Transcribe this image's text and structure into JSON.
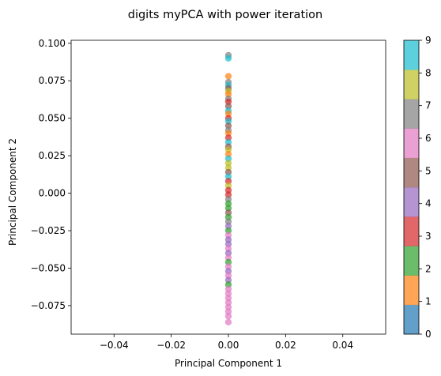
{
  "chart_data": {
    "type": "scatter",
    "title": "digits myPCA with power iteration",
    "xlabel": "Principal Component 1",
    "ylabel": "Principal Component 2",
    "xlim": [
      -0.055,
      0.055
    ],
    "ylim": [
      -0.094,
      0.102
    ],
    "grid": false,
    "x_ticks": [
      -0.04,
      -0.02,
      0.0,
      0.02,
      0.04
    ],
    "x_tick_labels": [
      "−0.04",
      "−0.02",
      "0.00",
      "0.02",
      "0.04"
    ],
    "y_ticks": [
      -0.075,
      -0.05,
      -0.025,
      0.0,
      0.025,
      0.05,
      0.075,
      0.1
    ],
    "y_tick_labels": [
      "−0.075",
      "−0.050",
      "−0.025",
      "0.000",
      "0.025",
      "0.050",
      "0.075",
      "0.100"
    ],
    "colorbar": {
      "min": 0,
      "max": 9,
      "ticks": [
        0,
        1,
        2,
        3,
        4,
        5,
        6,
        7,
        8,
        9
      ],
      "tick_labels": [
        "0",
        "1",
        "2",
        "3",
        "4",
        "5",
        "6",
        "7",
        "8",
        "9"
      ],
      "colors": [
        "#1f77b4",
        "#ff7f0e",
        "#2ca02c",
        "#d62728",
        "#9467bd",
        "#8c564b",
        "#e377c2",
        "#7f7f7f",
        "#bcbd22",
        "#17becf"
      ]
    },
    "points": [
      {
        "x": 0,
        "y": 0.092,
        "c": 7
      },
      {
        "x": 0,
        "y": 0.09,
        "c": 9
      },
      {
        "x": 0,
        "y": 0.078,
        "c": 1
      },
      {
        "x": 0,
        "y": 0.074,
        "c": 7
      },
      {
        "x": 0,
        "y": 0.072,
        "c": 9
      },
      {
        "x": 0,
        "y": 0.07,
        "c": 5
      },
      {
        "x": 0,
        "y": 0.068,
        "c": 8
      },
      {
        "x": 0,
        "y": 0.066,
        "c": 1
      },
      {
        "x": 0,
        "y": 0.063,
        "c": 7
      },
      {
        "x": 0,
        "y": 0.061,
        "c": 3
      },
      {
        "x": 0,
        "y": 0.058,
        "c": 5
      },
      {
        "x": 0,
        "y": 0.055,
        "c": 9
      },
      {
        "x": 0,
        "y": 0.053,
        "c": 1
      },
      {
        "x": 0,
        "y": 0.05,
        "c": 3
      },
      {
        "x": 0,
        "y": 0.048,
        "c": 9
      },
      {
        "x": 0,
        "y": 0.045,
        "c": 5
      },
      {
        "x": 0,
        "y": 0.042,
        "c": 7
      },
      {
        "x": 0,
        "y": 0.04,
        "c": 1
      },
      {
        "x": 0,
        "y": 0.037,
        "c": 3
      },
      {
        "x": 0,
        "y": 0.034,
        "c": 9
      },
      {
        "x": 0,
        "y": 0.031,
        "c": 5
      },
      {
        "x": 0,
        "y": 0.029,
        "c": 8
      },
      {
        "x": 0,
        "y": 0.026,
        "c": 1
      },
      {
        "x": 0,
        "y": 0.023,
        "c": 9
      },
      {
        "x": 0,
        "y": 0.02,
        "c": 8
      },
      {
        "x": 0,
        "y": 0.017,
        "c": 8
      },
      {
        "x": 0,
        "y": 0.014,
        "c": 5
      },
      {
        "x": 0,
        "y": 0.011,
        "c": 9
      },
      {
        "x": 0,
        "y": 0.008,
        "c": 3
      },
      {
        "x": 0,
        "y": 0.005,
        "c": 8
      },
      {
        "x": 0,
        "y": 0.002,
        "c": 3
      },
      {
        "x": 0,
        "y": -0.001,
        "c": 3
      },
      {
        "x": 0,
        "y": -0.004,
        "c": 7
      },
      {
        "x": 0,
        "y": -0.007,
        "c": 2
      },
      {
        "x": 0,
        "y": -0.01,
        "c": 2
      },
      {
        "x": 0,
        "y": -0.013,
        "c": 5
      },
      {
        "x": 0,
        "y": -0.016,
        "c": 2
      },
      {
        "x": 0,
        "y": -0.019,
        "c": 7
      },
      {
        "x": 0,
        "y": -0.022,
        "c": 4
      },
      {
        "x": 0,
        "y": -0.025,
        "c": 2
      },
      {
        "x": 0,
        "y": -0.028,
        "c": 6
      },
      {
        "x": 0,
        "y": -0.031,
        "c": 4
      },
      {
        "x": 0,
        "y": -0.034,
        "c": 4
      },
      {
        "x": 0,
        "y": -0.037,
        "c": 6
      },
      {
        "x": 0,
        "y": -0.04,
        "c": 4
      },
      {
        "x": 0,
        "y": -0.043,
        "c": 6
      },
      {
        "x": 0,
        "y": -0.046,
        "c": 2
      },
      {
        "x": 0,
        "y": -0.049,
        "c": 6
      },
      {
        "x": 0,
        "y": -0.052,
        "c": 4
      },
      {
        "x": 0,
        "y": -0.055,
        "c": 6
      },
      {
        "x": 0,
        "y": -0.058,
        "c": 4
      },
      {
        "x": 0,
        "y": -0.061,
        "c": 2
      },
      {
        "x": 0,
        "y": -0.064,
        "c": 6
      },
      {
        "x": 0,
        "y": -0.067,
        "c": 6
      },
      {
        "x": 0,
        "y": -0.07,
        "c": 6
      },
      {
        "x": 0,
        "y": -0.073,
        "c": 6
      },
      {
        "x": 0,
        "y": -0.076,
        "c": 6
      },
      {
        "x": 0,
        "y": -0.079,
        "c": 6
      },
      {
        "x": 0,
        "y": -0.082,
        "c": 6
      },
      {
        "x": 0,
        "y": -0.086,
        "c": 6
      }
    ]
  }
}
